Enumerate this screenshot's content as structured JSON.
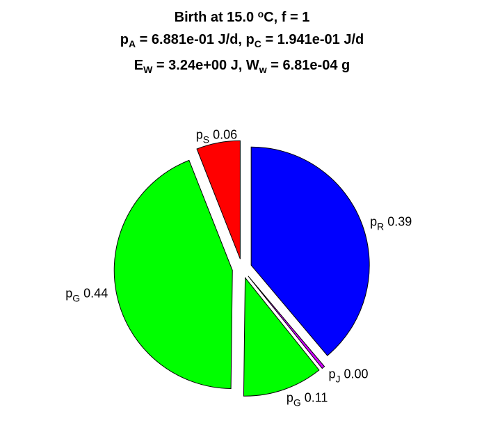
{
  "title": {
    "line1": {
      "pre": "Birth at 15.0 ",
      "sup": "o",
      "post": "C, f = 1"
    },
    "line2": {
      "a_base": "p",
      "a_sub": "A",
      "a_val": " = 6.881e-01 J/d, ",
      "c_base": "p",
      "c_sub": "C",
      "c_val": " = 1.941e-01 J/d"
    },
    "line3": {
      "e_base": "E",
      "e_sub": "W",
      "e_val": " = 3.24e+00 J, ",
      "w_base": "W",
      "w_sub": "w",
      "w_val": " = 6.81e-04 g"
    }
  },
  "chart_data": {
    "type": "pie",
    "start_angle_deg": 0,
    "direction": "clockwise",
    "exploded": true,
    "slices": [
      {
        "base": "p",
        "sub": "R",
        "value": 0.39,
        "label": "0.39",
        "color": "#0000ff"
      },
      {
        "base": "p",
        "sub": "J",
        "value": 0.004,
        "label": "0.00",
        "color": "#cc00ff"
      },
      {
        "base": "p",
        "sub": "G",
        "value": 0.11,
        "label": "0.11",
        "color": "#00ff00"
      },
      {
        "base": "p",
        "sub": "G",
        "value": 0.44,
        "label": "0.44",
        "color": "#00ff00"
      },
      {
        "base": "p",
        "sub": "S",
        "value": 0.06,
        "label": "0.06",
        "color": "#ff0000"
      }
    ]
  }
}
